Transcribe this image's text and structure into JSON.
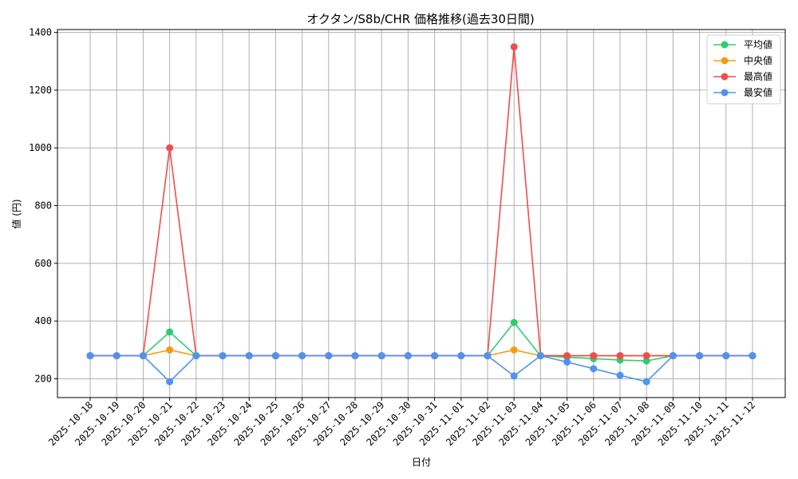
{
  "chart_data": {
    "type": "line",
    "title": "オクタン/S8b/CHR 価格推移(過去30日間)",
    "xlabel": "日付",
    "ylabel": "値 (円)",
    "ylim": [
      135,
      1410
    ],
    "yticks": [
      200,
      400,
      600,
      800,
      1000,
      1200,
      1400
    ],
    "grid": true,
    "legend_position": "top-right",
    "categories": [
      "2025-10-18",
      "2025-10-19",
      "2025-10-20",
      "2025-10-21",
      "2025-10-22",
      "2025-10-23",
      "2025-10-24",
      "2025-10-25",
      "2025-10-26",
      "2025-10-27",
      "2025-10-28",
      "2025-10-29",
      "2025-10-30",
      "2025-10-31",
      "2025-11-01",
      "2025-11-02",
      "2025-11-03",
      "2025-11-04",
      "2025-11-05",
      "2025-11-06",
      "2025-11-07",
      "2025-11-08",
      "2025-11-09",
      "2025-11-10",
      "2025-11-11",
      "2025-11-12"
    ],
    "series": [
      {
        "name": "平均値",
        "color": "#2ecc71",
        "values": [
          280,
          280,
          280,
          362,
          280,
          280,
          280,
          280,
          280,
          280,
          280,
          280,
          280,
          280,
          280,
          280,
          395,
          280,
          275,
          270,
          265,
          262,
          280,
          280,
          280,
          280
        ]
      },
      {
        "name": "中央値",
        "color": "#f39c12",
        "values": [
          280,
          280,
          280,
          300,
          280,
          280,
          280,
          280,
          280,
          280,
          280,
          280,
          280,
          280,
          280,
          280,
          300,
          280,
          280,
          280,
          280,
          280,
          280,
          280,
          280,
          280
        ]
      },
      {
        "name": "最高値",
        "color": "#ef4d4d",
        "values": [
          280,
          280,
          280,
          1000,
          280,
          280,
          280,
          280,
          280,
          280,
          280,
          280,
          280,
          280,
          280,
          280,
          1350,
          280,
          280,
          280,
          280,
          280,
          280,
          280,
          280,
          280
        ]
      },
      {
        "name": "最安値",
        "color": "#4f93f0",
        "values": [
          280,
          280,
          280,
          190,
          280,
          280,
          280,
          280,
          280,
          280,
          280,
          280,
          280,
          280,
          280,
          280,
          210,
          280,
          258,
          235,
          212,
          190,
          280,
          280,
          280,
          280
        ]
      }
    ]
  }
}
